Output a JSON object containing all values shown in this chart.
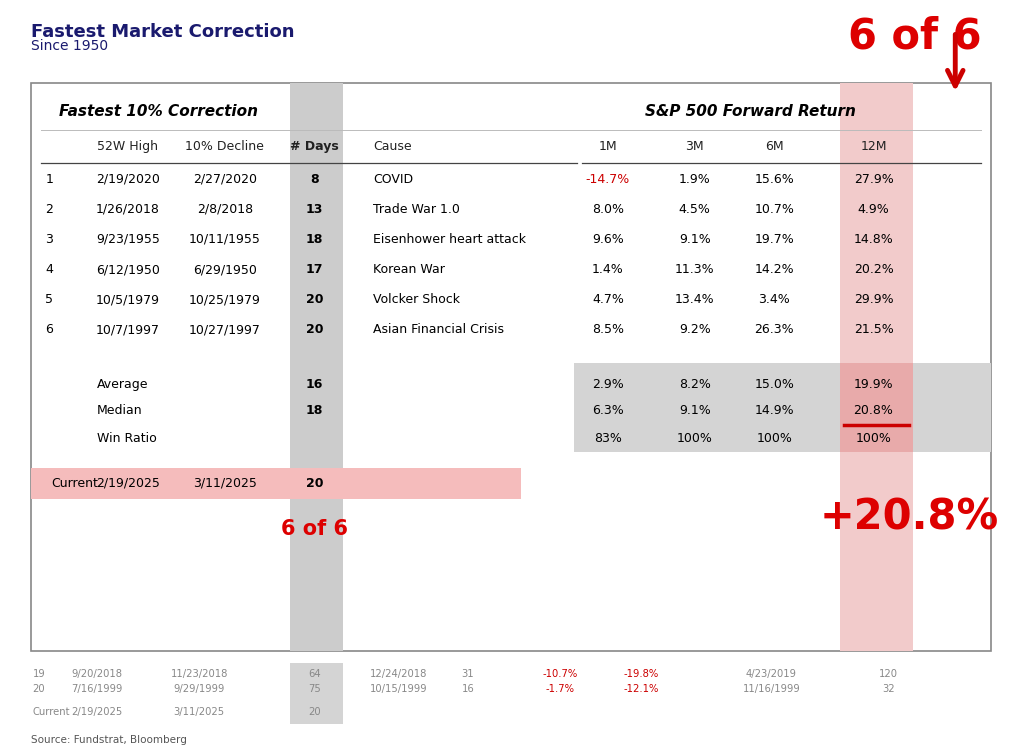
{
  "title": "Fastest Market Correction",
  "subtitle": "Since 1950",
  "source": "Source: Fundstrat, Bloomberg",
  "table_title_left": "Fastest 10% Correction",
  "table_title_right": "S&P 500 Forward Return",
  "rows": [
    {
      "num": "1",
      "high": "2/19/2020",
      "decline": "2/27/2020",
      "days": "8",
      "cause": "COVID",
      "1m": "-14.7%",
      "3m": "1.9%",
      "6m": "15.6%",
      "12m": "27.9%",
      "1m_neg": true
    },
    {
      "num": "2",
      "high": "1/26/2018",
      "decline": "2/8/2018",
      "days": "13",
      "cause": "Trade War 1.0",
      "1m": "8.0%",
      "3m": "4.5%",
      "6m": "10.7%",
      "12m": "4.9%",
      "1m_neg": false
    },
    {
      "num": "3",
      "high": "9/23/1955",
      "decline": "10/11/1955",
      "days": "18",
      "cause": "Eisenhower heart attack",
      "1m": "9.6%",
      "3m": "9.1%",
      "6m": "19.7%",
      "12m": "14.8%",
      "1m_neg": false
    },
    {
      "num": "4",
      "high": "6/12/1950",
      "decline": "6/29/1950",
      "days": "17",
      "cause": "Korean War",
      "1m": "1.4%",
      "3m": "11.3%",
      "6m": "14.2%",
      "12m": "20.2%",
      "1m_neg": false
    },
    {
      "num": "5",
      "high": "10/5/1979",
      "decline": "10/25/1979",
      "days": "20",
      "cause": "Volcker Shock",
      "1m": "4.7%",
      "3m": "13.4%",
      "6m": "3.4%",
      "12m": "29.9%",
      "1m_neg": false
    },
    {
      "num": "6",
      "high": "10/7/1997",
      "decline": "10/27/1997",
      "days": "20",
      "cause": "Asian Financial Crisis",
      "1m": "8.5%",
      "3m": "9.2%",
      "6m": "26.3%",
      "12m": "21.5%",
      "1m_neg": false
    }
  ],
  "summary_rows": [
    {
      "label": "Average",
      "days": "16",
      "1m": "2.9%",
      "3m": "8.2%",
      "6m": "15.0%",
      "12m": "19.9%"
    },
    {
      "label": "Median",
      "days": "18",
      "1m": "6.3%",
      "3m": "9.1%",
      "6m": "14.9%",
      "12m": "20.8%"
    },
    {
      "label": "Win Ratio",
      "days": "",
      "1m": "83%",
      "3m": "100%",
      "6m": "100%",
      "12m": "100%"
    }
  ],
  "current_row": {
    "label": "Current",
    "high": "2/19/2025",
    "decline": "3/11/2025",
    "days": "20"
  },
  "big_label_top": "6 of 6",
  "big_label_bottom": "6 of 6",
  "big_return": "+20.8%",
  "footer_rows": [
    {
      "num": "19",
      "high": "9/20/2018",
      "decline": "11/23/2018",
      "days": "64",
      "cause": "12/24/2018",
      "days2": "31",
      "1m": "-10.7%",
      "3m": "-19.8%",
      "date2": "4/23/2019",
      "12m": "120"
    },
    {
      "num": "20",
      "high": "7/16/1999",
      "decline": "9/29/1999",
      "days": "75",
      "cause": "10/15/1999",
      "days2": "16",
      "1m": "-1.7%",
      "3m": "-12.1%",
      "date2": "11/16/1999",
      "12m": "32"
    }
  ],
  "footer_current": {
    "label": "Current",
    "high": "2/19/2025",
    "decline": "3/11/2025",
    "days": "20"
  },
  "colors": {
    "title_color": "#1a1a6e",
    "days_col_bg": "#cccccc",
    "summary_bg": "#d4d4d4",
    "twelvem_col_bg": "#f2cbcb",
    "twelvem_summary_bg": "#e8aaaa",
    "current_row_bg": "#f5bcbc",
    "neg_color": "#cc0000",
    "pos_color": "#000000",
    "red_label": "#dd0000",
    "border_color": "#888888",
    "footer_color": "#888888",
    "arrow_color": "#cc0000",
    "median_underline": "#cc0000"
  }
}
